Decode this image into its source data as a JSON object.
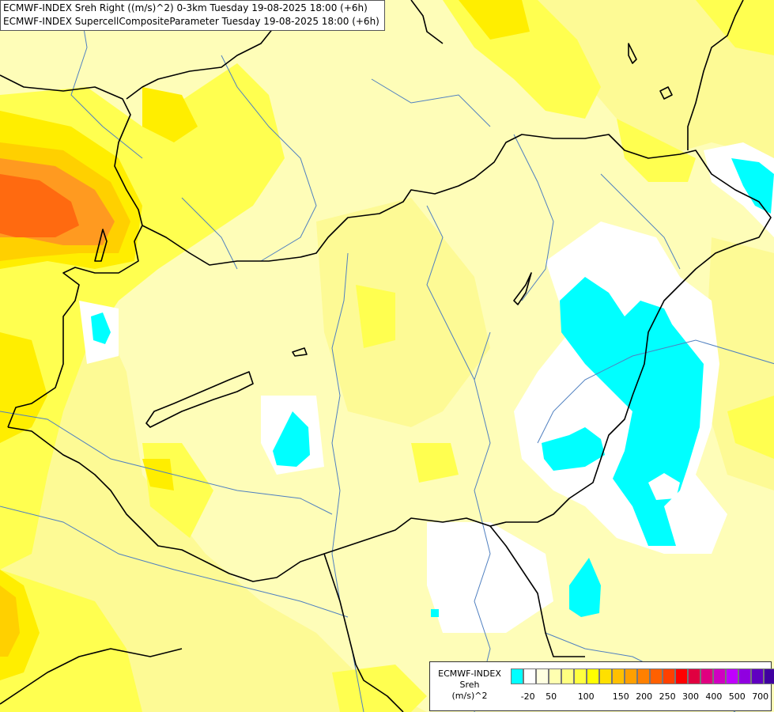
{
  "title": {
    "line1": "ECMWF-INDEX Sreh Right ((m/s)^2) 0-3km Tuesday 19-08-2025 18:00 (+6h)",
    "line2": "ECMWF-INDEX SupercellCompositeParameter Tuesday 19-08-2025 18:00 (+6h)"
  },
  "legend": {
    "title": "ECMWF-INDEX",
    "variable": "Sreh",
    "unit": "(m/s)^2",
    "colors": [
      "#00ffff",
      "#ffffff",
      "#ffffe0",
      "#ffffb0",
      "#ffff80",
      "#ffff40",
      "#ffff00",
      "#ffe000",
      "#ffc000",
      "#ffa000",
      "#ff8000",
      "#ff6000",
      "#ff4000",
      "#ff0000",
      "#e00040",
      "#e00080",
      "#d000c0",
      "#c000ff",
      "#9000e0",
      "#6000c0",
      "#4000a0",
      "#000080"
    ],
    "ticks": [
      "-20",
      "50",
      "100",
      "150",
      "200",
      "250",
      "300",
      "400",
      "500",
      "700"
    ]
  },
  "colors": {
    "background": "#fefdb8",
    "light_yellow": "#fdfa95",
    "yellow": "#ffff40",
    "bright_yellow": "#ffee00",
    "gold": "#ffd000",
    "orange": "#ff9a20",
    "dark_orange": "#ff6a10",
    "cyan": "#00ffff",
    "white": "#ffffff",
    "border": "#000000",
    "river": "#5080c0"
  }
}
